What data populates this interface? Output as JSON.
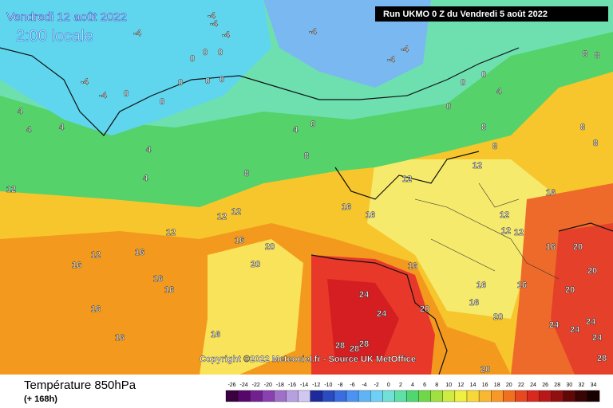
{
  "header": {
    "date": "Vendredi 12 août 2022",
    "time": "2:00 locale",
    "run": "Run UKMO 0 Z du Vendredi 5 août 2022",
    "copyright": "Copyright ©2022 Meteociel.fr - Source UK MetOffice"
  },
  "footer": {
    "title": "Température 850hPa",
    "subtitle": "(+ 168h)"
  },
  "legend": {
    "ticks": [
      -26,
      -24,
      -22,
      -20,
      -18,
      -16,
      -14,
      -12,
      -10,
      -8,
      -6,
      -4,
      -2,
      0,
      2,
      4,
      6,
      8,
      10,
      12,
      14,
      16,
      18,
      20,
      22,
      24,
      26,
      28,
      30,
      32,
      34
    ]
  },
  "map": {
    "labels": [
      -4,
      -4,
      -4,
      -4,
      -4,
      -4,
      -4,
      0,
      0,
      0,
      -4,
      -4,
      0,
      0,
      0,
      0,
      0,
      0,
      0,
      0,
      0,
      4,
      4,
      4,
      4,
      4,
      4,
      4,
      8,
      8,
      8,
      8,
      8,
      8,
      8,
      8,
      12,
      12,
      12,
      12,
      12,
      12,
      12,
      12,
      12,
      12,
      16,
      16,
      16,
      16,
      16,
      16,
      16,
      16,
      16,
      16,
      16,
      16,
      16,
      16,
      16,
      16,
      20,
      20,
      20,
      20,
      20,
      20,
      20,
      20,
      24,
      24,
      24,
      24,
      24,
      24,
      28,
      28,
      28,
      28
    ]
  }
}
